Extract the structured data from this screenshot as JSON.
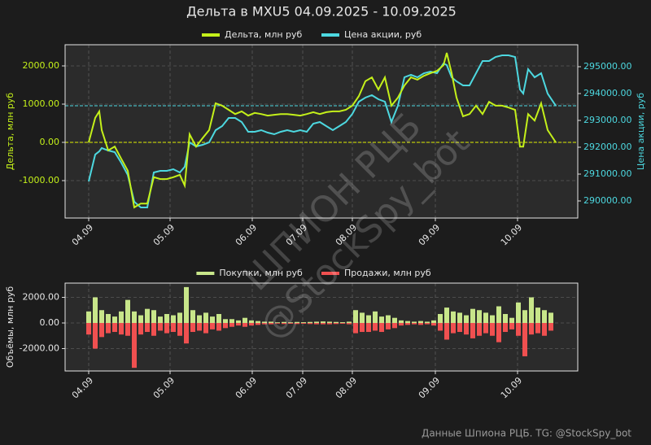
{
  "chart_data": [
    {
      "type": "line",
      "title": "Дельта в MXU5 04.09.2025 - 10.09.2025",
      "ylabel": "Дельта, млн руб",
      "y2label": "Цена акции, руб",
      "x": [
        0,
        8,
        13,
        16,
        24,
        32,
        40,
        48,
        56,
        64,
        72,
        80,
        88,
        96,
        104,
        112,
        118,
        124,
        132,
        140,
        148,
        156,
        164,
        172,
        180,
        188,
        196,
        204,
        212,
        220,
        228,
        236,
        244,
        252,
        260,
        268,
        276,
        284,
        292,
        300,
        308,
        316,
        324,
        332,
        340,
        348,
        356,
        364,
        372,
        380,
        388,
        396,
        404,
        412,
        420,
        428,
        436,
        440,
        446,
        452,
        460,
        468,
        476,
        484,
        492,
        500,
        508,
        516,
        524,
        530,
        534,
        540,
        548,
        556,
        564,
        574
      ],
      "xlim": [
        -29,
        601
      ],
      "xticks": [
        {
          "value": 0,
          "label": "04.09"
        },
        {
          "value": 100,
          "label": "05.09"
        },
        {
          "value": 201,
          "label": "06.09"
        },
        {
          "value": 263,
          "label": "07.09"
        },
        {
          "value": 324,
          "label": "08.09"
        },
        {
          "value": 426,
          "label": "09.09"
        },
        {
          "value": 527,
          "label": "10.09"
        }
      ],
      "ylim": [
        -1979,
        2553
      ],
      "yticks": [
        {
          "value": -1000,
          "label": "-1000.00"
        },
        {
          "value": 0,
          "label": "0.00"
        },
        {
          "value": 1000,
          "label": "1000.00"
        },
        {
          "value": 2000,
          "label": "2000.00"
        }
      ],
      "y2lim": [
        289364,
        295818
      ],
      "y2ticks": [
        {
          "value": 290000,
          "label": "290000.00"
        },
        {
          "value": 291000,
          "label": "291000.00"
        },
        {
          "value": 292000,
          "label": "292000.00"
        },
        {
          "value": 293000,
          "label": "293000.00"
        },
        {
          "value": 294000,
          "label": "294000.00"
        },
        {
          "value": 295000,
          "label": "295000.00"
        }
      ],
      "grid": true,
      "hlines": [
        {
          "value": 0,
          "axis": "y",
          "color": "#e0f000"
        },
        {
          "value": 293545,
          "axis": "y2",
          "color": "#4dd8e0"
        }
      ],
      "series": [
        {
          "name": "Дельта, млн руб",
          "color": "#c4f01a",
          "axis": "y",
          "values": [
            0,
            640,
            810,
            320,
            -210,
            -110,
            -430,
            -740,
            -1700,
            -1600,
            -1600,
            -910,
            -960,
            -960,
            -910,
            -850,
            -1130,
            210,
            -110,
            110,
            320,
            1020,
            960,
            850,
            740,
            810,
            700,
            770,
            740,
            700,
            720,
            740,
            740,
            720,
            700,
            740,
            790,
            740,
            790,
            810,
            810,
            850,
            960,
            1210,
            1600,
            1700,
            1380,
            1700,
            960,
            1170,
            1490,
            1700,
            1640,
            1740,
            1810,
            1870,
            2020,
            2340,
            1810,
            1170,
            680,
            740,
            960,
            740,
            1060,
            960,
            960,
            910,
            850,
            -110,
            -110,
            740,
            570,
            1020,
            320,
            0
          ]
        },
        {
          "name": "Цена акции, руб",
          "color": "#4dd8e0",
          "axis": "y2",
          "values": [
            290727,
            291727,
            291850,
            291970,
            291879,
            291818,
            291424,
            290970,
            289970,
            289758,
            289758,
            291061,
            291121,
            291121,
            291182,
            291061,
            291273,
            292182,
            292030,
            292091,
            292182,
            292636,
            292788,
            293091,
            293091,
            292939,
            292576,
            292576,
            292636,
            292545,
            292485,
            292576,
            292636,
            292576,
            292636,
            292576,
            292879,
            292939,
            292788,
            292636,
            292788,
            292939,
            293242,
            293697,
            293848,
            293939,
            293788,
            293697,
            292939,
            293545,
            294606,
            294697,
            294606,
            294758,
            294818,
            294758,
            295121,
            295061,
            294606,
            294455,
            294303,
            294303,
            294758,
            295212,
            295212,
            295364,
            295424,
            295424,
            295364,
            294152,
            294000,
            294909,
            294606,
            294758,
            294000,
            293545
          ]
        }
      ]
    },
    {
      "type": "bar",
      "ylabel": "Объёмы, млн руб",
      "x": [
        0,
        8,
        16,
        24,
        32,
        40,
        48,
        56,
        64,
        72,
        80,
        88,
        96,
        104,
        112,
        120,
        128,
        136,
        144,
        152,
        160,
        168,
        176,
        184,
        192,
        200,
        208,
        216,
        224,
        232,
        240,
        248,
        256,
        264,
        272,
        280,
        288,
        296,
        304,
        312,
        320,
        328,
        336,
        344,
        352,
        360,
        368,
        376,
        384,
        392,
        400,
        408,
        416,
        424,
        432,
        440,
        448,
        456,
        464,
        472,
        480,
        488,
        496,
        504,
        512,
        520,
        528,
        536,
        544,
        552,
        560,
        568
      ],
      "xlim": [
        -29,
        601
      ],
      "xticks": [
        {
          "value": 0,
          "label": "04.09"
        },
        {
          "value": 100,
          "label": "05.09"
        },
        {
          "value": 201,
          "label": "06.09"
        },
        {
          "value": 263,
          "label": "07.09"
        },
        {
          "value": 324,
          "label": "08.09"
        },
        {
          "value": 426,
          "label": "09.09"
        },
        {
          "value": 527,
          "label": "10.09"
        }
      ],
      "ylim": [
        -3746,
        3111
      ],
      "yticks": [
        {
          "value": -2000,
          "label": "-2000.00"
        },
        {
          "value": 0,
          "label": "0.00"
        },
        {
          "value": 2000,
          "label": "2000.00"
        }
      ],
      "grid": true,
      "series": [
        {
          "name": "Покупки, млн руб",
          "color": "#c8e68a",
          "values": [
            900,
            2000,
            1000,
            700,
            500,
            900,
            1800,
            900,
            600,
            1100,
            1000,
            500,
            700,
            600,
            800,
            2800,
            1000,
            600,
            800,
            500,
            700,
            300,
            300,
            200,
            400,
            200,
            150,
            100,
            100,
            50,
            80,
            50,
            80,
            60,
            80,
            100,
            120,
            100,
            80,
            60,
            100,
            1000,
            800,
            600,
            900,
            500,
            600,
            400,
            200,
            150,
            100,
            150,
            100,
            200,
            700,
            1200,
            900,
            800,
            600,
            1100,
            1000,
            800,
            600,
            1300,
            700,
            400,
            1600,
            1000,
            2000,
            1200,
            1000,
            800
          ]
        },
        {
          "name": "Продажи, млн руб",
          "color": "#f05050",
          "values": [
            -900,
            -2000,
            -1100,
            -800,
            -700,
            -900,
            -1000,
            -3500,
            -900,
            -700,
            -1000,
            -600,
            -800,
            -700,
            -1000,
            -1600,
            -700,
            -600,
            -800,
            -500,
            -600,
            -400,
            -300,
            -200,
            -300,
            -200,
            -150,
            -100,
            -100,
            -50,
            -80,
            -60,
            -80,
            -60,
            -80,
            -100,
            -100,
            -100,
            -80,
            -60,
            -100,
            -800,
            -700,
            -700,
            -600,
            -700,
            -500,
            -400,
            -200,
            -150,
            -100,
            -150,
            -100,
            -200,
            -600,
            -1300,
            -800,
            -700,
            -900,
            -1200,
            -1000,
            -800,
            -1000,
            -1500,
            -700,
            -500,
            -1000,
            -2600,
            -900,
            -800,
            -1000,
            -600
          ]
        }
      ]
    }
  ],
  "watermark": [
    "ШПИОН РЦБ",
    "@StockSpy_bot"
  ],
  "footer": "Данные Шпиона РЦБ. TG: @StockSpy_bot"
}
